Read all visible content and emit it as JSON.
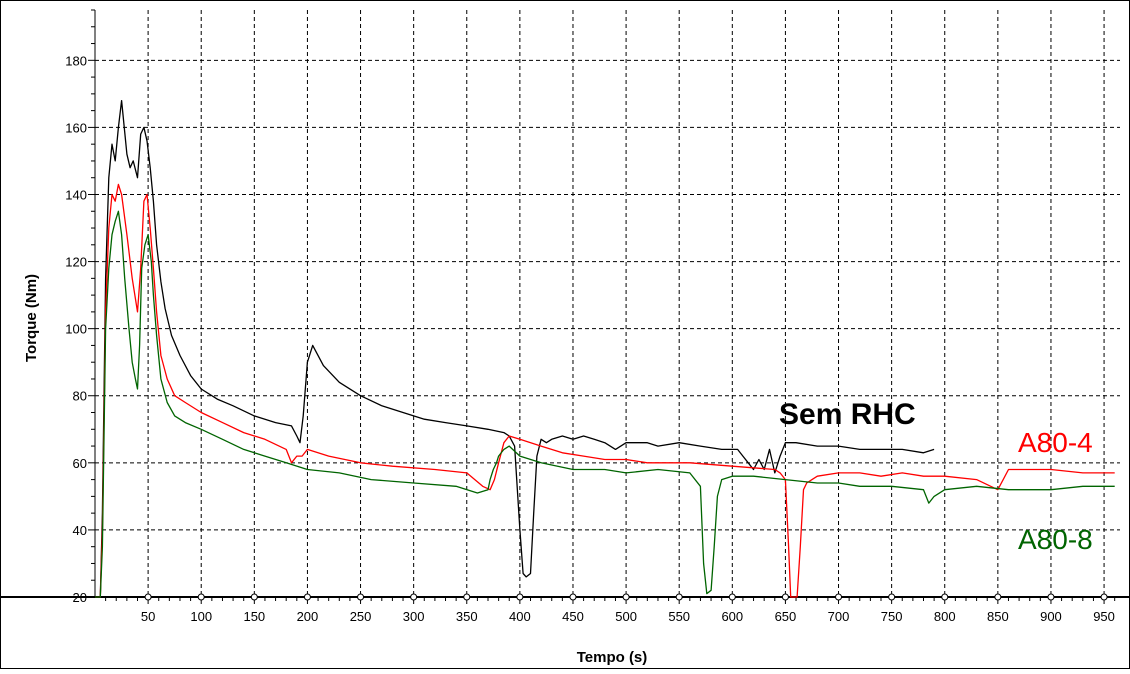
{
  "chart_data": {
    "type": "line",
    "title": "",
    "xlabel": "Tempo (s)",
    "ylabel": "Torque (Nm)",
    "xlim": [
      0,
      965
    ],
    "ylim": [
      20,
      195
    ],
    "x_ticks": [
      50,
      100,
      150,
      200,
      250,
      300,
      350,
      400,
      450,
      500,
      550,
      600,
      650,
      700,
      750,
      800,
      850,
      900,
      950
    ],
    "y_ticks": [
      20,
      40,
      60,
      80,
      100,
      120,
      140,
      160,
      180
    ],
    "grid": true,
    "annotations": [
      {
        "text": "Sem RHC",
        "color": "#000000"
      },
      {
        "text": "A80-4",
        "color": "#ff0000"
      },
      {
        "text": "A80-8",
        "color": "#006400"
      }
    ],
    "series": [
      {
        "color": "#000000",
        "x": [
          0,
          5,
          7,
          10,
          13,
          16,
          19,
          22,
          25,
          30,
          33,
          36,
          40,
          43,
          46,
          49,
          52,
          55,
          58,
          62,
          66,
          72,
          80,
          90,
          100,
          115,
          130,
          150,
          170,
          185,
          190,
          193,
          196,
          200,
          205,
          215,
          230,
          250,
          270,
          290,
          310,
          330,
          350,
          370,
          385,
          390,
          395,
          400,
          403,
          406,
          410,
          413,
          416,
          420,
          425,
          430,
          440,
          450,
          460,
          470,
          480,
          490,
          500,
          510,
          520,
          530,
          550,
          570,
          590,
          605,
          610,
          615,
          620,
          625,
          630,
          635,
          640,
          645,
          650,
          660,
          680,
          700,
          720,
          740,
          760,
          780,
          790
        ],
        "y": [
          20,
          20,
          45,
          115,
          145,
          155,
          150,
          160,
          168,
          152,
          148,
          150,
          145,
          158,
          160,
          156,
          148,
          138,
          125,
          114,
          106,
          98,
          92,
          86,
          82,
          79,
          77,
          74,
          72,
          71,
          68,
          66,
          74,
          90,
          95,
          89,
          84,
          80,
          77,
          75,
          73,
          72,
          71,
          70,
          69,
          68,
          65,
          40,
          27,
          26,
          27,
          45,
          62,
          67,
          66,
          67,
          68,
          67,
          68,
          67,
          66,
          64,
          66,
          66,
          66,
          65,
          66,
          65,
          64,
          64,
          62,
          60,
          58,
          61,
          58,
          64,
          57,
          62,
          66,
          66,
          65,
          65,
          64,
          64,
          64,
          63,
          64
        ]
      },
      {
        "color": "#ff0000",
        "x": [
          0,
          5,
          7,
          10,
          13,
          16,
          19,
          22,
          25,
          30,
          35,
          40,
          43,
          46,
          49,
          52,
          55,
          58,
          62,
          68,
          75,
          85,
          100,
          120,
          140,
          160,
          180,
          185,
          190,
          195,
          200,
          220,
          250,
          280,
          320,
          350,
          365,
          372,
          376,
          380,
          385,
          390,
          400,
          420,
          440,
          460,
          480,
          500,
          520,
          540,
          560,
          600,
          640,
          645,
          650,
          653,
          655,
          658,
          661,
          664,
          667,
          670,
          675,
          680,
          700,
          720,
          740,
          760,
          780,
          800,
          830,
          850,
          855,
          860,
          880,
          900,
          930,
          960
        ],
        "y": [
          20,
          20,
          40,
          105,
          130,
          140,
          138,
          143,
          140,
          128,
          115,
          105,
          118,
          138,
          140,
          130,
          118,
          105,
          92,
          85,
          80,
          78,
          75,
          72,
          69,
          67,
          64,
          60,
          62,
          62,
          64,
          62,
          60,
          59,
          58,
          57,
          53,
          52,
          55,
          60,
          66,
          68,
          67,
          65,
          63,
          62,
          61,
          61,
          60,
          60,
          60,
          59,
          58,
          57,
          55,
          35,
          20,
          20,
          20,
          35,
          52,
          54,
          55,
          56,
          57,
          57,
          56,
          57,
          56,
          56,
          55,
          52,
          55,
          58,
          58,
          58,
          57,
          57
        ]
      },
      {
        "color": "#006400",
        "x": [
          0,
          5,
          7,
          10,
          13,
          16,
          19,
          22,
          25,
          28,
          32,
          35,
          38,
          40,
          42,
          44,
          47,
          50,
          53,
          55,
          58,
          62,
          68,
          75,
          85,
          100,
          120,
          140,
          160,
          180,
          200,
          230,
          260,
          300,
          340,
          360,
          370,
          372,
          375,
          378,
          380,
          385,
          390,
          400,
          420,
          450,
          480,
          500,
          530,
          560,
          570,
          573,
          576,
          580,
          583,
          586,
          590,
          600,
          620,
          650,
          680,
          700,
          720,
          750,
          780,
          785,
          790,
          800,
          830,
          860,
          900,
          930,
          960
        ],
        "y": [
          20,
          20,
          35,
          100,
          118,
          128,
          132,
          135,
          128,
          115,
          100,
          90,
          85,
          82,
          95,
          118,
          125,
          128,
          120,
          110,
          98,
          85,
          78,
          74,
          72,
          70,
          67,
          64,
          62,
          60,
          58,
          57,
          55,
          54,
          53,
          51,
          52,
          55,
          58,
          60,
          62,
          64,
          65,
          62,
          60,
          58,
          58,
          57,
          58,
          57,
          53,
          30,
          21,
          22,
          35,
          50,
          55,
          56,
          56,
          55,
          54,
          54,
          53,
          53,
          52,
          48,
          50,
          52,
          53,
          52,
          52,
          53,
          53
        ]
      }
    ]
  }
}
